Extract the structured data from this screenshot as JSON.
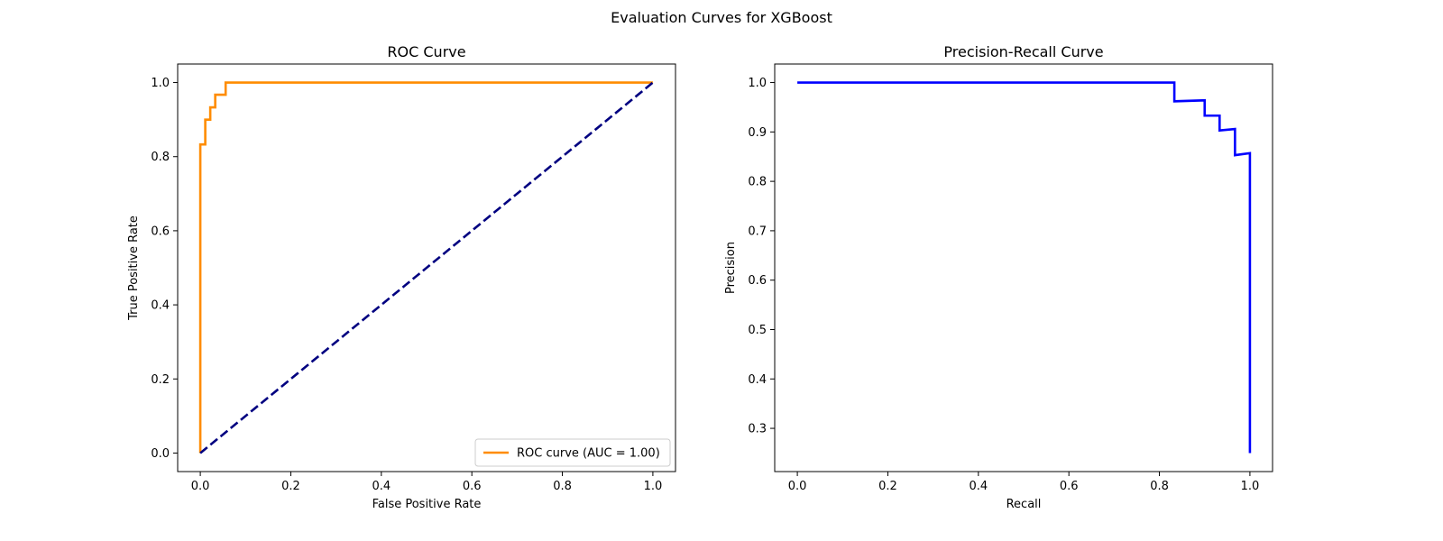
{
  "figure": {
    "suptitle": "Evaluation Curves for XGBoost"
  },
  "colors": {
    "roc_line": "#ff8c00",
    "diagonal": "#000080",
    "pr_line": "#0000ff",
    "axes": "#000000"
  },
  "chart_data": [
    {
      "type": "line",
      "title": "ROC Curve",
      "xlabel": "False Positive Rate",
      "ylabel": "True Positive Rate",
      "xlim": [
        -0.05,
        1.05
      ],
      "ylim": [
        -0.05,
        1.05
      ],
      "xticks": [
        0.0,
        0.2,
        0.4,
        0.6,
        0.8,
        1.0
      ],
      "yticks": [
        0.0,
        0.2,
        0.4,
        0.6,
        0.8,
        1.0
      ],
      "tick_labels_x": [
        "0.0",
        "0.2",
        "0.4",
        "0.6",
        "0.8",
        "1.0"
      ],
      "tick_labels_y": [
        "0.0",
        "0.2",
        "0.4",
        "0.6",
        "0.8",
        "1.0"
      ],
      "grid": false,
      "legend": {
        "placement": "lower-right",
        "entries": [
          "ROC curve (AUC = 1.00)"
        ]
      },
      "series": [
        {
          "name": "ROC curve (AUC = 1.00)",
          "style": "solid",
          "x": [
            0.0,
            0.0,
            0.0,
            0.011,
            0.011,
            0.022,
            0.022,
            0.033,
            0.033,
            0.056,
            0.056,
            1.0
          ],
          "y": [
            0.0,
            0.833,
            0.833,
            0.833,
            0.9,
            0.9,
            0.933,
            0.933,
            0.967,
            0.967,
            1.0,
            1.0
          ]
        },
        {
          "style": "dashed",
          "x": [
            0.0,
            1.0
          ],
          "y": [
            0.0,
            1.0
          ]
        }
      ]
    },
    {
      "type": "line",
      "title": "Precision-Recall Curve",
      "xlabel": "Recall",
      "ylabel": "Precision",
      "xlim": [
        -0.05,
        1.05
      ],
      "ylim": [
        0.2125,
        1.0375
      ],
      "xticks": [
        0.0,
        0.2,
        0.4,
        0.6,
        0.8,
        1.0
      ],
      "yticks": [
        0.3,
        0.4,
        0.5,
        0.6,
        0.7,
        0.8,
        0.9,
        1.0
      ],
      "tick_labels_x": [
        "0.0",
        "0.2",
        "0.4",
        "0.6",
        "0.8",
        "1.0"
      ],
      "tick_labels_y": [
        "0.3",
        "0.4",
        "0.5",
        "0.6",
        "0.7",
        "0.8",
        "0.9",
        "1.0"
      ],
      "grid": false,
      "series": [
        {
          "style": "solid",
          "x": [
            0.0,
            0.833,
            0.833,
            0.9,
            0.9,
            0.933,
            0.933,
            0.967,
            0.967,
            1.0,
            1.0
          ],
          "y": [
            1.0,
            1.0,
            0.962,
            0.964,
            0.933,
            0.933,
            0.903,
            0.906,
            0.853,
            0.857,
            0.25
          ]
        }
      ]
    }
  ]
}
